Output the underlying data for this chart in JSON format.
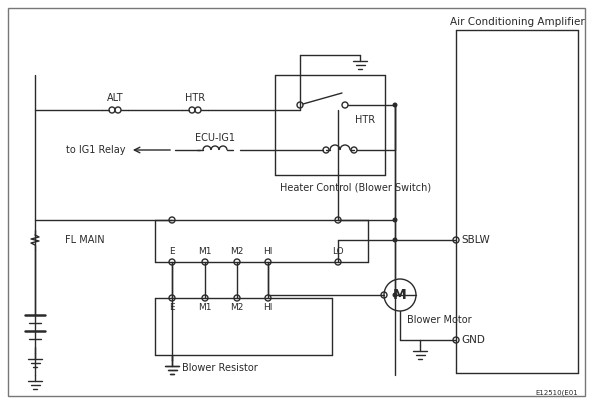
{
  "fig_width": 5.93,
  "fig_height": 4.04,
  "dpi": 100,
  "labels": {
    "air_cond_amp": "Air Conditioning Amplifier",
    "alt": "ALT",
    "htr_fuse": "HTR",
    "ecu_ig1": "ECU-IG1",
    "to_ig1": "to IG1 Relay",
    "htr_relay": "HTR",
    "fl_main": "FL MAIN",
    "heater_control": "Heater Control (Blower Switch)",
    "blower_resistor": "Blower Resistor",
    "blower_motor": "Blower Motor",
    "sblw": "SBLW",
    "gnd": "GND",
    "part_num": "E12510(E01"
  },
  "line_color": "#2a2a2a",
  "text_color": "#2a2a2a"
}
